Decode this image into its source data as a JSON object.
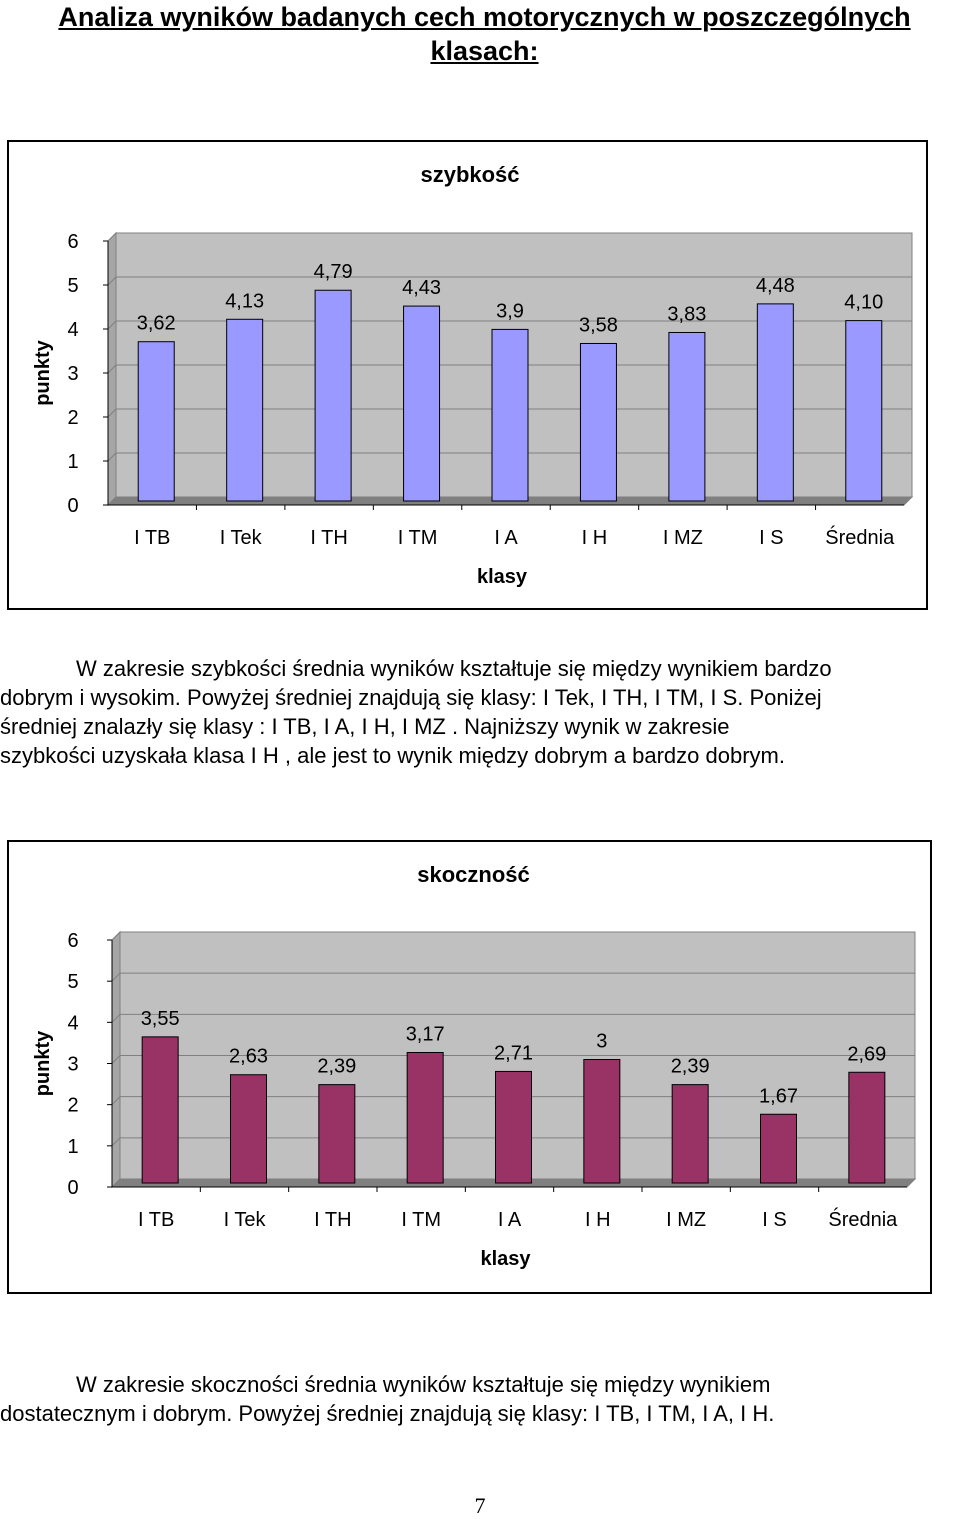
{
  "heading": "Analiza wyników badanych cech motorycznych w poszczególnych klasach:",
  "chart_data": [
    {
      "type": "bar",
      "title": "szybkość",
      "xlabel": "klasy",
      "ylabel": "punkty",
      "ylim": [
        0,
        6
      ],
      "yticks": [
        "0",
        "1",
        "2",
        "3",
        "4",
        "5",
        "6"
      ],
      "categories": [
        "I TB",
        "I Tek",
        "I TH",
        "I TM",
        "I A",
        "I H",
        "I MZ",
        "I S",
        "Średnia"
      ],
      "values": [
        3.62,
        4.13,
        4.79,
        4.43,
        3.9,
        3.58,
        3.83,
        4.48,
        4.1
      ],
      "data_labels": [
        "3,62",
        "4,13",
        "4,79",
        "4,43",
        "3,9",
        "3,58",
        "3,83",
        "4,48",
        "4,10"
      ],
      "grid": true,
      "legend": "none",
      "bar_color": "#9999ff",
      "plot_bg": "#c0c0c0"
    },
    {
      "type": "bar",
      "title": "skoczność",
      "xlabel": "klasy",
      "ylabel": "punkty",
      "ylim": [
        0,
        6
      ],
      "yticks": [
        "0",
        "1",
        "2",
        "3",
        "4",
        "5",
        "6"
      ],
      "categories": [
        "I TB",
        "I Tek",
        "I TH",
        "I TM",
        "I A",
        "I H",
        "I MZ",
        "I S",
        "Średnia"
      ],
      "values": [
        3.55,
        2.63,
        2.39,
        3.17,
        2.71,
        3,
        2.39,
        1.67,
        2.69
      ],
      "data_labels": [
        "3,55",
        "2,63",
        "2,39",
        "3,17",
        "2,71",
        "3",
        "2,39",
        "1,67",
        "2,69"
      ],
      "grid": true,
      "legend": "none",
      "bar_color": "#993366",
      "plot_bg": "#c0c0c0"
    }
  ],
  "paragraph1": {
    "lines": [
      "W zakresie szybkości średnia wyników kształtuje się między wynikiem bardzo",
      "dobrym i wysokim. Powyżej średniej znajdują się klasy: I Tek, I TH, I TM, I S. Poniżej",
      "średniej znalazły się klasy : I TB, I A, I H, I MZ . Najniższy wynik w zakresie",
      "szybkości uzyskała klasa I H , ale jest to wynik między dobrym a bardzo dobrym."
    ]
  },
  "paragraph2": {
    "lines": [
      "W zakresie skoczności średnia wyników kształtuje się między wynikiem",
      "dostatecznym i dobrym. Powyżej średniej znajdują się klasy: I TB, I TM, I A, I H."
    ]
  },
  "page_number": "7"
}
